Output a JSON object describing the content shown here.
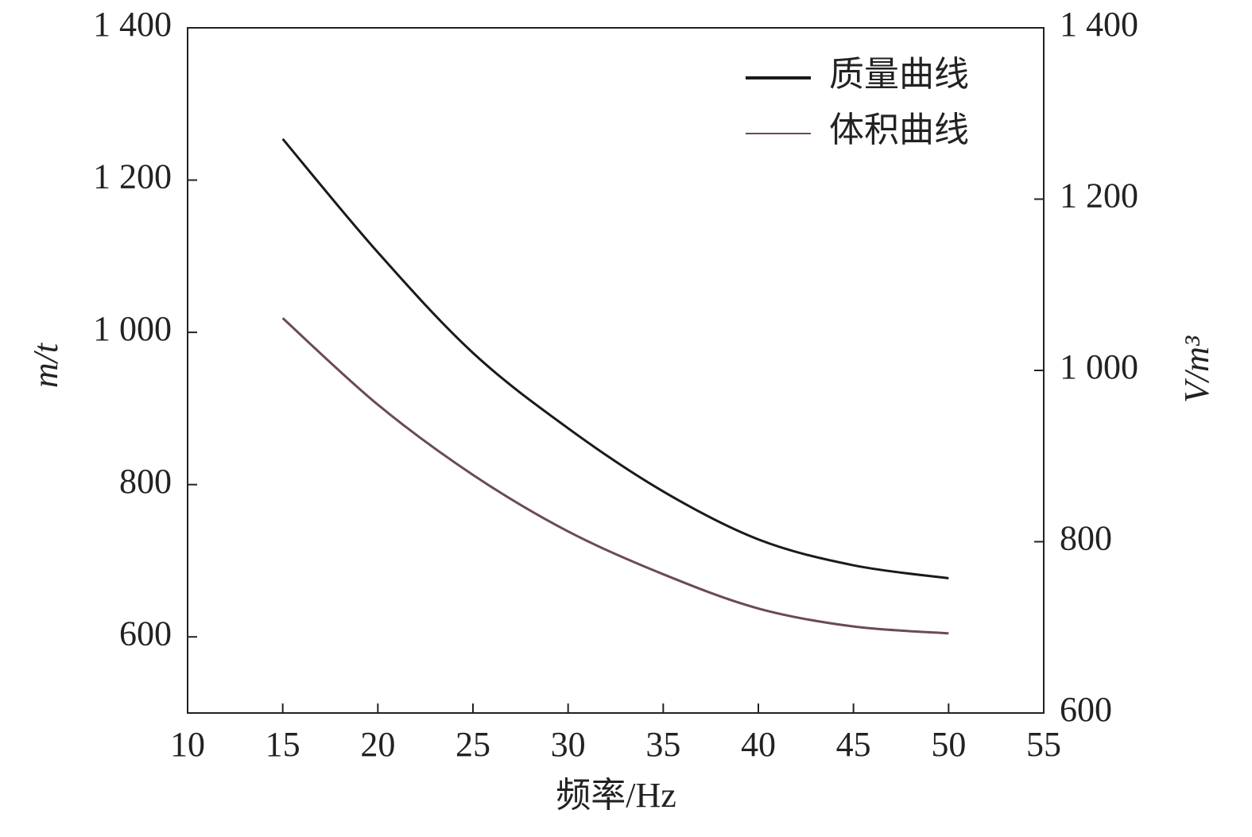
{
  "chart_data": {
    "type": "line",
    "x_label": "频率/Hz",
    "y_label": "m/t",
    "y2_label": "V/m³",
    "x": [
      15,
      20,
      25,
      30,
      35,
      40,
      45,
      50
    ],
    "series": [
      {
        "name": "质量曲线",
        "color": "#1a1a1a",
        "values": [
          1254,
          1105,
          973,
          874,
          791,
          728,
          694,
          677
        ]
      },
      {
        "name": "体积曲线",
        "color": "#6b4a55",
        "axis": "y2",
        "values": [
          1061,
          960,
          878,
          812,
          762,
          722,
          701,
          693
        ]
      }
    ],
    "xlim": [
      10,
      55
    ],
    "xticks": [
      10,
      15,
      20,
      25,
      30,
      35,
      40,
      45,
      50,
      55
    ],
    "ylim": [
      500,
      1400
    ],
    "yticks": [
      600,
      800,
      {
        "value": 1000,
        "label": "1 000"
      },
      {
        "value": 1200,
        "label": "1 200"
      },
      {
        "value": 1400,
        "label": "1 400"
      }
    ],
    "y2lim": [
      600,
      1400
    ],
    "y2ticks": [
      600,
      800,
      {
        "value": 1000,
        "label": "1 000"
      },
      {
        "value": 1200,
        "label": "1 200"
      },
      {
        "value": 1400,
        "label": "1 400"
      }
    ],
    "legend": "upper right",
    "grid": false
  }
}
